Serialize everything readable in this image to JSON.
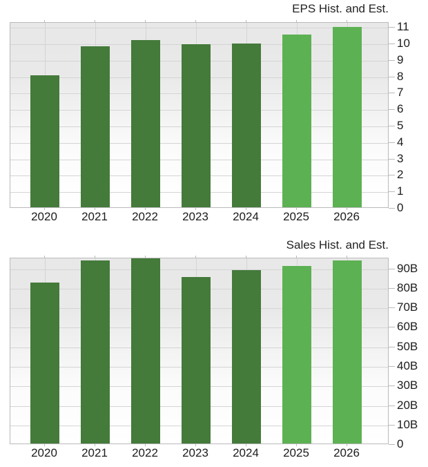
{
  "colors": {
    "bar_historical": "#447a3a",
    "bar_estimate": "#5cb152",
    "grid": "#d4d4d4",
    "plot_border": "#b9b9b9",
    "text": "#1c1c1c",
    "title_text": "#222222"
  },
  "chart_data": [
    {
      "type": "bar",
      "title": "EPS Hist. and Est.",
      "categories": [
        "2020",
        "2021",
        "2022",
        "2023",
        "2024",
        "2025",
        "2026"
      ],
      "values": [
        8.03,
        9.8,
        10.15,
        9.9,
        9.95,
        10.5,
        10.95
      ],
      "estimate_from_index": 5,
      "xlabel": "",
      "ylabel": "",
      "ylim": [
        0,
        11.3
      ],
      "yticks": [
        0,
        1,
        2,
        3,
        4,
        5,
        6,
        7,
        8,
        9,
        10,
        11
      ],
      "ytick_labels": [
        "0",
        "1",
        "2",
        "3",
        "4",
        "5",
        "6",
        "7",
        "8",
        "9",
        "10",
        "11"
      ],
      "grid": true,
      "axis_side": "right",
      "legend": "none"
    },
    {
      "type": "bar",
      "title": "Sales Hist. and Est.",
      "categories": [
        "2020",
        "2021",
        "2022",
        "2023",
        "2024",
        "2025",
        "2026"
      ],
      "values": [
        82.6,
        93.8,
        94.9,
        85.2,
        88.8,
        90.9,
        93.6
      ],
      "value_unit": "B",
      "estimate_from_index": 5,
      "xlabel": "",
      "ylabel": "",
      "ylim": [
        0,
        95.5
      ],
      "yticks": [
        0,
        10,
        20,
        30,
        40,
        50,
        60,
        70,
        80,
        90
      ],
      "ytick_labels": [
        "0",
        "10B",
        "20B",
        "30B",
        "40B",
        "50B",
        "60B",
        "70B",
        "80B",
        "90B"
      ],
      "grid": true,
      "axis_side": "right",
      "legend": "none"
    }
  ]
}
